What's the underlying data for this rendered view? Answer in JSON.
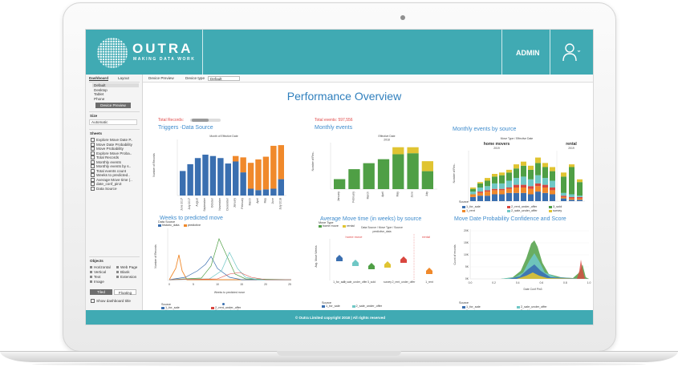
{
  "brand": {
    "name": "OUTRA",
    "tagline": "MAKING DATA WORK",
    "accent": "#40aab3"
  },
  "header": {
    "admin_label": "ADMIN",
    "user_icon": "user-icon"
  },
  "left_panel": {
    "tabs": [
      "Dashboard",
      "Layout"
    ],
    "devices": [
      "Default",
      "Desktop",
      "Tablet",
      "Phone"
    ],
    "device_preview_button": "Device Preview",
    "size_label": "Size",
    "size_value": "Automatic",
    "sheets_label": "Sheets",
    "sheets": [
      "Explore Move Date P..",
      "Move Date Probability",
      "Move Probability",
      "Explore Move Proba..",
      "Total Records",
      "Monthly events",
      "Monthly events by s..",
      "Total events count",
      "Weeks to predicted..",
      "Average Move time (..",
      "date_conf_pin3",
      "Data Source"
    ],
    "objects_label": "Objects",
    "objects": [
      "Horizontal",
      "Web Page",
      "Vertical",
      "Blank",
      "Text",
      "Extension",
      "Image"
    ],
    "tiled_label": "Tiled",
    "floating_label": "Floating",
    "show_title_label": "Show dashboard title"
  },
  "toolbar": {
    "device_preview": "Device Preview",
    "device_type_label": "Device type",
    "device_type_value": "Default"
  },
  "dashboard": {
    "title": "Performance Overview",
    "total_records_label": "Total Records:",
    "total_events_label": "Total events:",
    "total_events_value": "597,556"
  },
  "panels": {
    "triggers": {
      "title": "Triggers -Data Source"
    },
    "monthly": {
      "title": "Monthly events"
    },
    "monthly_source": {
      "title": "Monthly events by source"
    },
    "weeks": {
      "title": "Weeks to predicted move"
    },
    "avg_move": {
      "title": "Average Move time (in weeks) by source"
    },
    "probability": {
      "title": "Move Date Probability Confidence and Score"
    }
  },
  "chart_data": [
    {
      "type": "bar",
      "title": "Triggers -Data Source",
      "header": "Month of Effective Date",
      "ylabel": "Number of Records",
      "categories": [
        "June 2017",
        "July 2017",
        "August",
        "September",
        "October",
        "November",
        "December",
        "January",
        "February",
        "March",
        "April",
        "May",
        "June",
        "July 2018"
      ],
      "series": [
        {
          "name": "historic_data",
          "color": "#3a6fb0",
          "values": [
            36,
            46,
            55,
            60,
            58,
            55,
            47,
            50,
            34,
            10,
            8,
            9,
            10,
            24
          ]
        },
        {
          "name": "predictive",
          "color": "#f0892b",
          "values": [
            0,
            0,
            0,
            0,
            0,
            0,
            0,
            8,
            22,
            38,
            45,
            48,
            63,
            50
          ]
        }
      ],
      "ylim": [
        0,
        80
      ],
      "legend_title": "Data Source"
    },
    {
      "type": "bar",
      "title": "Monthly events",
      "header": "Effective Date",
      "header_year": "2018",
      "ylabel": "Number of Rec..",
      "categories": [
        "January",
        "February",
        "March",
        "April",
        "May",
        "June",
        "July"
      ],
      "series": [
        {
          "name": "home move",
          "color": "#4f9f45",
          "values": [
            10,
            20,
            26,
            30,
            35,
            36,
            18
          ]
        },
        {
          "name": "rental",
          "color": "#e0c432",
          "values": [
            0,
            0,
            0,
            0,
            7,
            6,
            10
          ]
        }
      ],
      "legend_title": "Move Type"
    },
    {
      "type": "bar",
      "title": "Monthly events by source",
      "header": "Move Type / Effective Date",
      "groups": [
        {
          "label": "home movers",
          "year": "2019"
        },
        {
          "label": "rental",
          "year": "2019"
        }
      ],
      "ylabel": "Number of Rec..",
      "series": [
        {
          "name": "1_for_sale",
          "color": "#3a6fb0"
        },
        {
          "name": "1_rent",
          "color": "#f0892b"
        },
        {
          "name": "2_rent_under_offer",
          "color": "#d9463f"
        },
        {
          "name": "2_sale_under_offer",
          "color": "#6fc7c5"
        },
        {
          "name": "3_sold",
          "color": "#4f9f45"
        },
        {
          "name": "survey",
          "color": "#e0c432"
        }
      ],
      "legend_title": "Source"
    },
    {
      "type": "line",
      "title": "Weeks to predicted move",
      "xlabel": "Weeks to predicted move",
      "ylabel": "Number of Records",
      "xticks": [
        "0",
        "5",
        "10",
        "15",
        "20",
        "25"
      ],
      "series": [
        {
          "name": "1_for_sale",
          "color": "#3a6fb0"
        },
        {
          "name": "1_rent",
          "color": "#f0892b"
        },
        {
          "name": "2_rent_under_offer",
          "color": "#d9463f"
        },
        {
          "name": "2_sale_under_offer",
          "color": "#6fc7c5"
        },
        {
          "name": "3_sold",
          "color": "#4f9f45"
        }
      ],
      "legend_title": "Source"
    },
    {
      "type": "scatter",
      "title": "Average Move time (in weeks) by source",
      "header": "Data Source / Move Type / Source",
      "sub_header": "predictive_data",
      "groups": [
        "home move",
        "rental"
      ],
      "ylabel": "Avg. Move Weeks",
      "categories": [
        "1_for_sale",
        "2_sale_under_offer",
        "3_sold",
        "survey",
        "1_rent",
        "2_rent_under_offer"
      ],
      "legend_title": "Source"
    },
    {
      "type": "area",
      "title": "Move Date Probability Confidence and Score",
      "xlabel": "Date Conf Pin3",
      "ylabel": "Count of records",
      "xticks": [
        "0.0",
        "0.2",
        "0.4",
        "0.6",
        "0.8",
        "1.0"
      ],
      "yticks": [
        "0K",
        "5K",
        "10K",
        "15K",
        "20K"
      ],
      "legend_title": "Source"
    }
  ],
  "footer": {
    "text": "© Outra Limited copyright 2018  |  All rights reserved"
  }
}
